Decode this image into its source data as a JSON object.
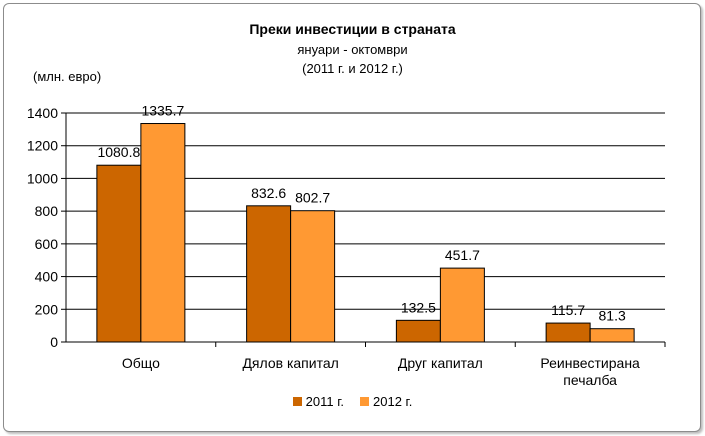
{
  "chart_data": {
    "type": "bar",
    "title": "Преки инвестиции  в страната",
    "subtitle_lines": [
      "януари - октомври",
      "(2011 г. и 2012 г.)"
    ],
    "ylabel": "(млн. евро)",
    "xlabel": "",
    "ylim": [
      0,
      1400
    ],
    "yticks": [
      0,
      200,
      400,
      600,
      800,
      1000,
      1200,
      1400
    ],
    "grid": true,
    "legend_position": "bottom",
    "categories": [
      [
        "Общо"
      ],
      [
        "Дялов капитал"
      ],
      [
        "Друг капитал"
      ],
      [
        "Реинвестирана",
        "печалба"
      ]
    ],
    "series": [
      {
        "name": "2011 г.",
        "color": "#cc6600",
        "values": [
          1080.8,
          832.6,
          132.5,
          115.7
        ],
        "labels": [
          "1080.8",
          "832.6",
          "132.5",
          "115.7"
        ]
      },
      {
        "name": "2012 г.",
        "color": "#ff9933",
        "values": [
          1335.7,
          802.7,
          451.7,
          81.3
        ],
        "labels": [
          "1335.7",
          "802.7",
          "451.7",
          "81.3"
        ]
      }
    ]
  }
}
